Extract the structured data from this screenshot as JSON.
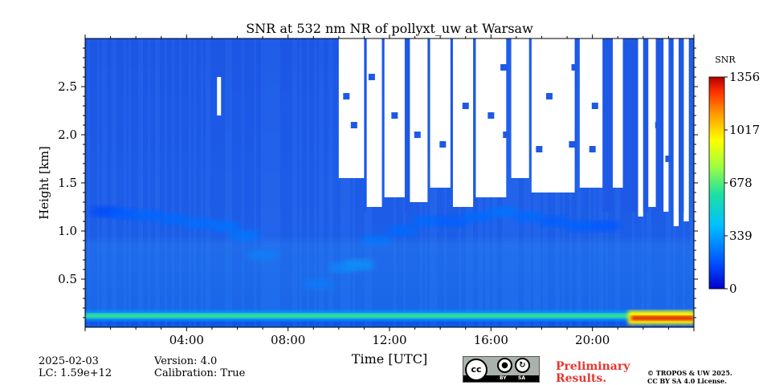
{
  "chart_data": {
    "type": "heatmap",
    "title": "SNR at 532 nm NR of pollyxt_uw at Warsaw",
    "xlabel": "Time [UTC]",
    "ylabel": "Height [km]",
    "x_range_hours": [
      0,
      24
    ],
    "y_range_km": [
      0,
      3.0
    ],
    "x_ticks": [
      {
        "value": 4,
        "label": "04:00"
      },
      {
        "value": 8,
        "label": "08:00"
      },
      {
        "value": 12,
        "label": "12:00"
      },
      {
        "value": 16,
        "label": "16:00"
      },
      {
        "value": 20,
        "label": "20:00"
      }
    ],
    "y_ticks": [
      {
        "value": 0.5,
        "label": "0.5"
      },
      {
        "value": 1.0,
        "label": "1.0"
      },
      {
        "value": 1.5,
        "label": "1.5"
      },
      {
        "value": 2.0,
        "label": "2.0"
      },
      {
        "value": 2.5,
        "label": "2.5"
      }
    ],
    "colorbar": {
      "label": "SNR",
      "min": 0,
      "max": 1356,
      "ticks": [
        {
          "value": 0,
          "label": "0"
        },
        {
          "value": 339,
          "label": "339"
        },
        {
          "value": 678,
          "label": "678"
        },
        {
          "value": 1017,
          "label": "1017"
        },
        {
          "value": 1356,
          "label": "1356"
        }
      ]
    },
    "features": {
      "surface_layer_snr": 650,
      "surface_layer_top_km": 0.12,
      "high_snr_after_hour": 21.4,
      "high_snr_value": 1300,
      "aerosol_layer_points": [
        [
          0.8,
          1.2,
          150
        ],
        [
          1.5,
          1.18,
          190
        ],
        [
          2.5,
          1.16,
          210
        ],
        [
          3.5,
          1.12,
          220
        ],
        [
          4.5,
          1.08,
          230
        ],
        [
          5.5,
          1.05,
          240
        ],
        [
          6.3,
          0.95,
          250
        ],
        [
          7.0,
          0.75,
          260
        ],
        [
          9.2,
          0.45,
          240
        ],
        [
          10.2,
          0.62,
          280
        ],
        [
          10.8,
          0.65,
          320
        ],
        [
          11.5,
          0.9,
          240
        ],
        [
          12.5,
          1.0,
          220
        ],
        [
          13.5,
          1.1,
          220
        ],
        [
          14.5,
          1.1,
          200
        ],
        [
          15.5,
          1.15,
          220
        ],
        [
          16.5,
          1.2,
          240
        ],
        [
          17.5,
          1.15,
          220
        ],
        [
          18.5,
          1.1,
          200
        ],
        [
          19.5,
          1.05,
          200
        ],
        [
          20.5,
          1.05,
          180
        ]
      ],
      "cloud_screening_start_hour": 9.8
    }
  },
  "footer": {
    "date": "2025-02-03",
    "lc": "LC: 1.59e+12",
    "version": "Version: 4.0",
    "calibration": "Calibration: True",
    "preliminary_1": "Preliminary",
    "preliminary_2": "Results.",
    "copyright_1": "© TROPOS & UW 2025.",
    "copyright_2": "CC BY SA 4.0 License.",
    "license_badge": {
      "cc": "cc",
      "by": "BY",
      "sa": "SA"
    }
  }
}
